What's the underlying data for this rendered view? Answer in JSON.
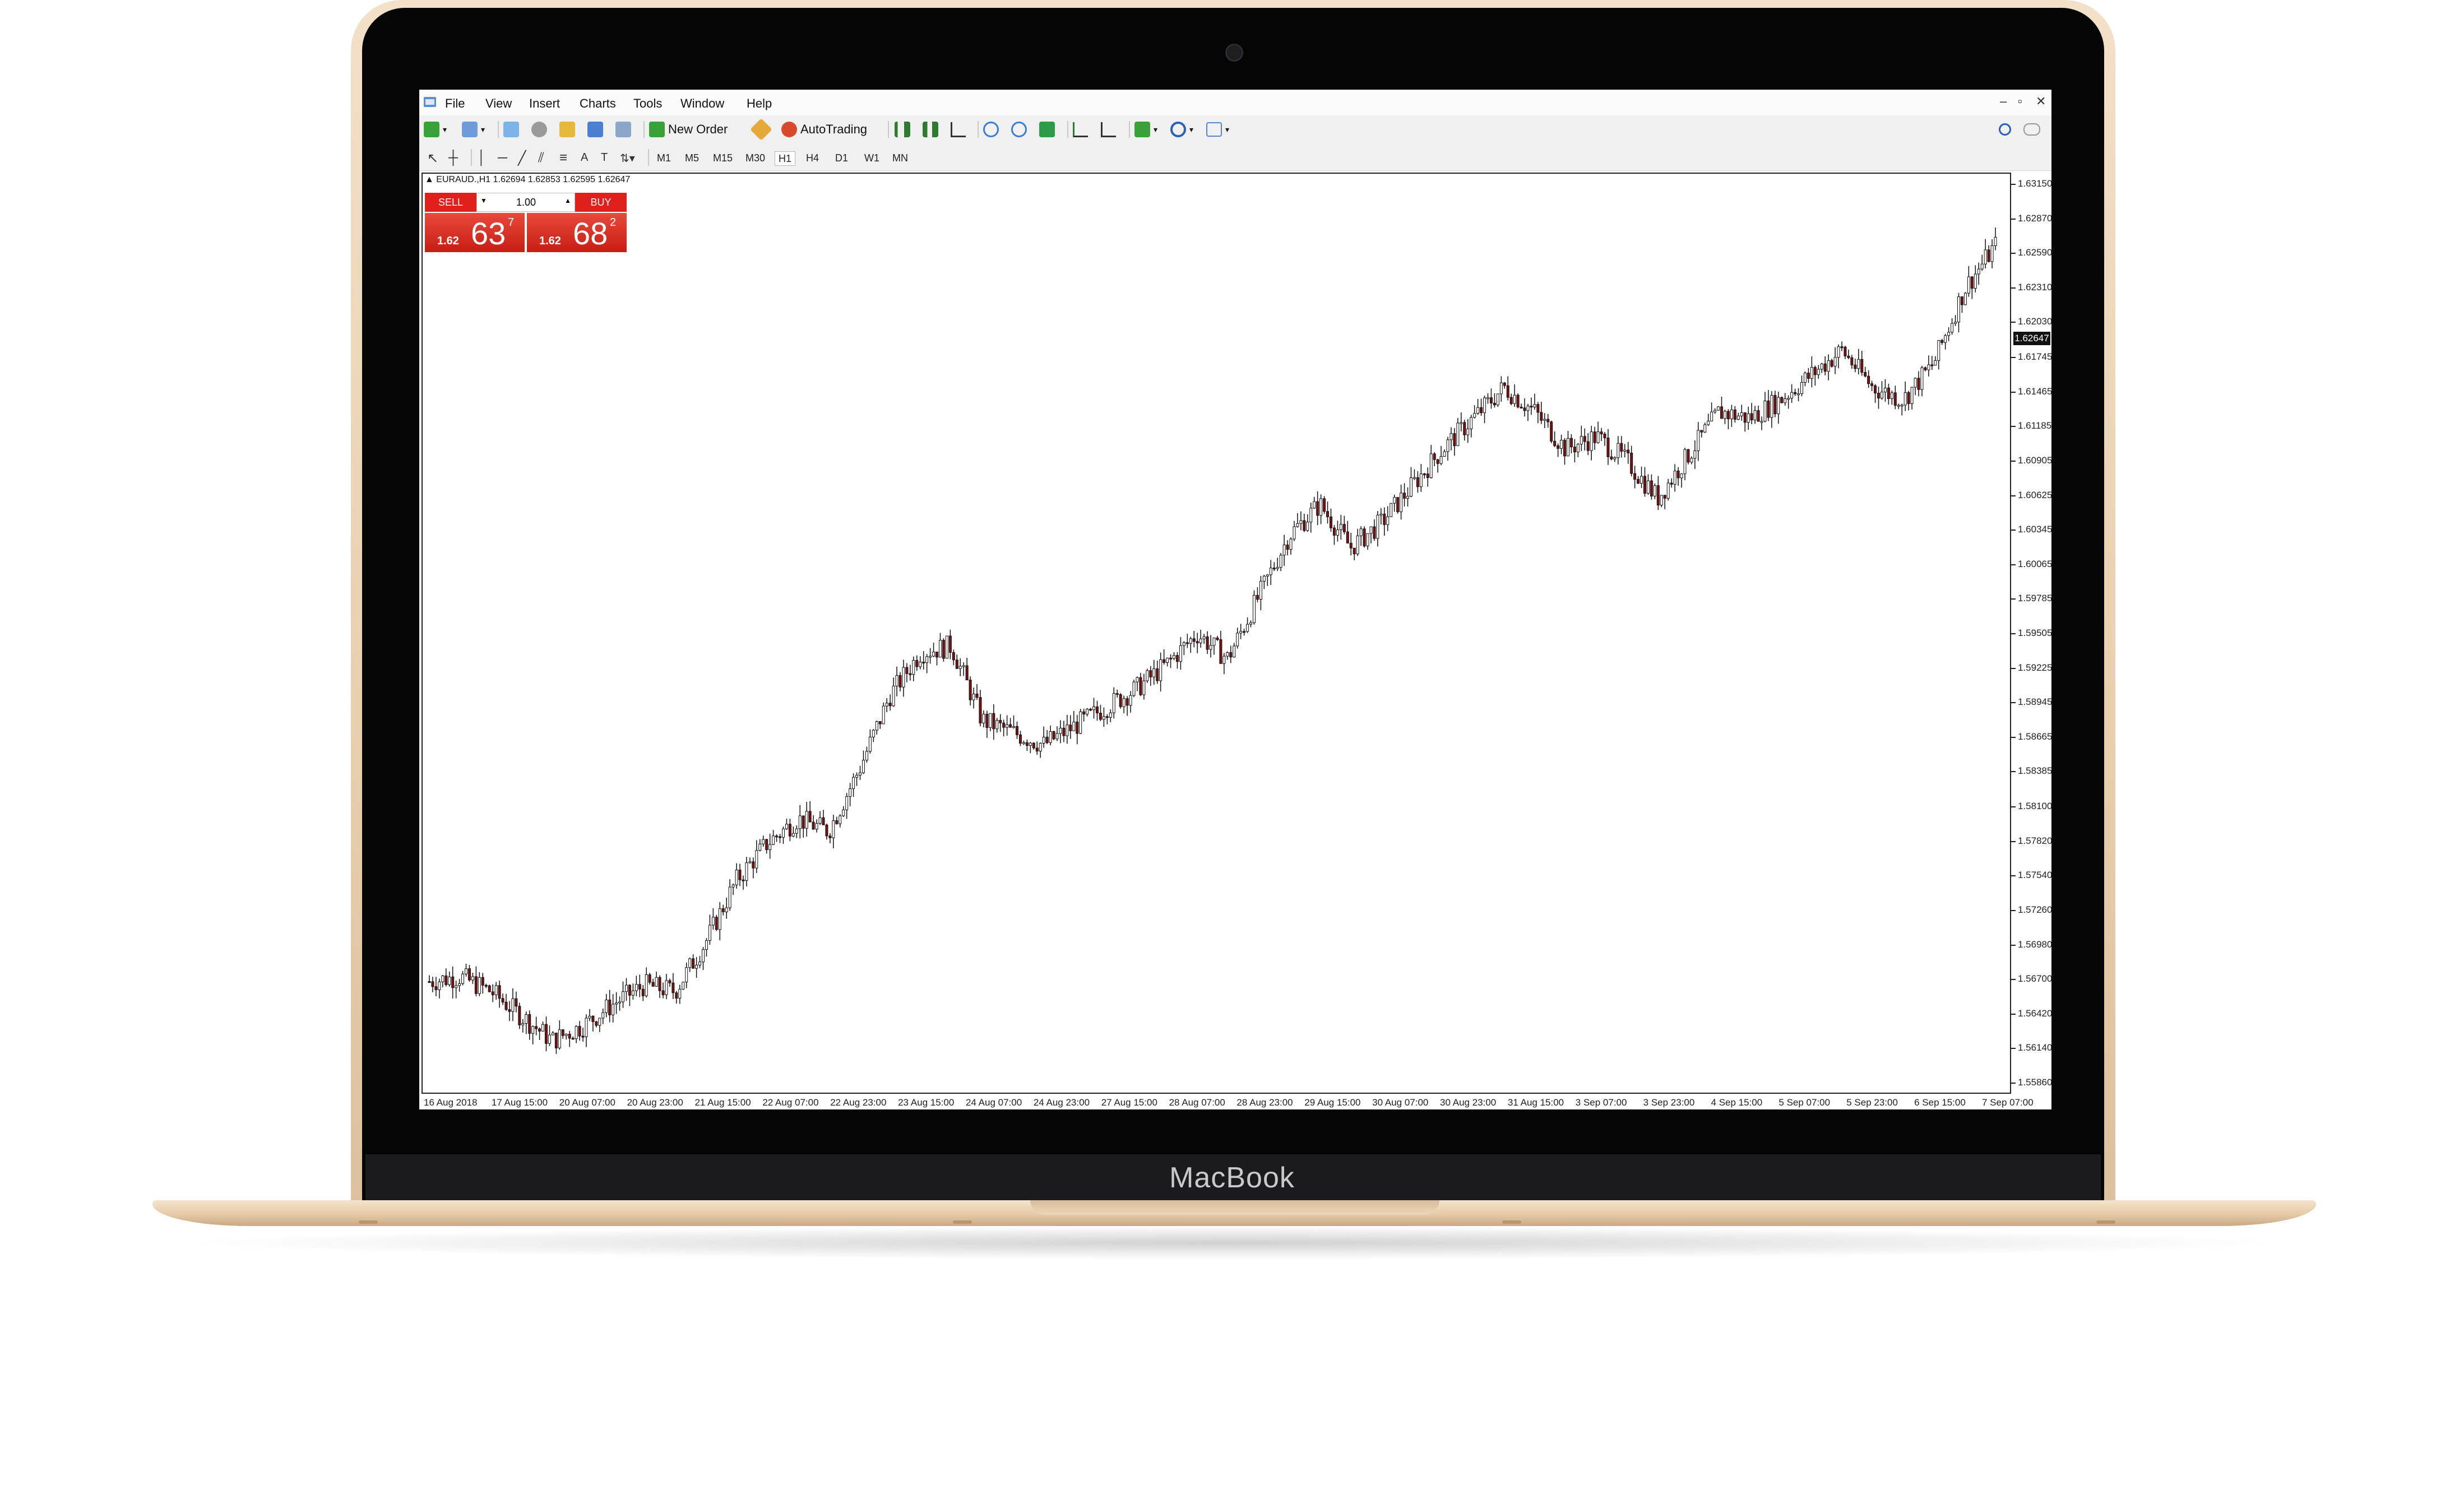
{
  "device": {
    "brand_label": "MacBook"
  },
  "menubar": {
    "items": [
      "File",
      "View",
      "Insert",
      "Charts",
      "Tools",
      "Window",
      "Help"
    ],
    "window_controls": [
      "–",
      "▫",
      "✕"
    ]
  },
  "toolbar": {
    "new_order_label": "New Order",
    "autotrading_label": "AutoTrading",
    "timeframes": [
      "M1",
      "M5",
      "M15",
      "M30",
      "H1",
      "H4",
      "D1",
      "W1",
      "MN"
    ],
    "active_timeframe": "H1",
    "icons": [
      "new-chart-icon",
      "profiles-icon",
      "market-watch-icon",
      "data-window-icon",
      "navigator-icon",
      "terminal-icon",
      "strategy-tester-icon",
      "meta-editor-icon",
      "bar-chart-icon",
      "candlestick-icon",
      "line-chart-icon",
      "zoom-in-icon",
      "zoom-out-icon",
      "tile-windows-icon",
      "autoscroll-icon",
      "chart-shift-icon",
      "indicators-icon",
      "periods-icon",
      "templates-icon",
      "search-icon",
      "chat-icon"
    ],
    "draw_icons": [
      "cursor-icon",
      "crosshair-icon",
      "vertical-line-icon",
      "horizontal-line-icon",
      "trendline-icon",
      "channel-icon",
      "fibonacci-icon",
      "text-icon",
      "text-label-icon",
      "arrows-icon"
    ]
  },
  "chart": {
    "symbol_info": "▲ EURAUD.,H1  1.62694 1.62853 1.62595 1.62647",
    "current_price": "1.62647"
  },
  "one_click": {
    "sell_label": "SELL",
    "buy_label": "BUY",
    "volume": "1.00",
    "sell_small": "1.62",
    "sell_big": "63",
    "sell_sup": "7",
    "buy_small": "1.62",
    "buy_big": "68",
    "buy_sup": "2",
    "color": "#e0201b"
  },
  "chart_data": {
    "type": "candlestick",
    "ylim": [
      1.5586,
      1.6315
    ],
    "price_ticks": [
      "1.63150",
      "1.62870",
      "1.62590",
      "1.62310",
      "1.62030",
      "1.61745",
      "1.61465",
      "1.61185",
      "1.60905",
      "1.60625",
      "1.60345",
      "1.60065",
      "1.59785",
      "1.59505",
      "1.59225",
      "1.58945",
      "1.58665",
      "1.58385",
      "1.58100",
      "1.57820",
      "1.57540",
      "1.57260",
      "1.56980",
      "1.56700",
      "1.56420",
      "1.56140",
      "1.55860"
    ],
    "time_ticks": [
      "16 Aug 2018",
      "17 Aug 15:00",
      "20 Aug 07:00",
      "20 Aug 23:00",
      "21 Aug 15:00",
      "22 Aug 07:00",
      "22 Aug 23:00",
      "23 Aug 15:00",
      "24 Aug 07:00",
      "24 Aug 23:00",
      "27 Aug 15:00",
      "28 Aug 07:00",
      "28 Aug 23:00",
      "29 Aug 15:00",
      "30 Aug 07:00",
      "30 Aug 23:00",
      "31 Aug 15:00",
      "3 Sep 07:00",
      "3 Sep 23:00",
      "4 Sep 15:00",
      "5 Sep 07:00",
      "5 Sep 23:00",
      "6 Sep 15:00",
      "7 Sep 07:00"
    ],
    "close_trend": [
      1.5668,
      1.5672,
      1.566,
      1.564,
      1.562,
      1.5632,
      1.565,
      1.5665,
      1.566,
      1.57,
      1.575,
      1.578,
      1.58,
      1.579,
      1.584,
      1.59,
      1.5935,
      1.594,
      1.588,
      1.587,
      1.586,
      1.5875,
      1.589,
      1.5905,
      1.5925,
      1.595,
      1.593,
      1.598,
      1.603,
      1.6055,
      1.602,
      1.604,
      1.607,
      1.61,
      1.6125,
      1.615,
      1.613,
      1.61,
      1.611,
      1.609,
      1.606,
      1.6095,
      1.613,
      1.6125,
      1.614,
      1.616,
      1.618,
      1.615,
      1.614,
      1.617,
      1.623,
      1.6265
    ],
    "up_color": "#1a7f1a",
    "down_color": "#7a1010"
  }
}
